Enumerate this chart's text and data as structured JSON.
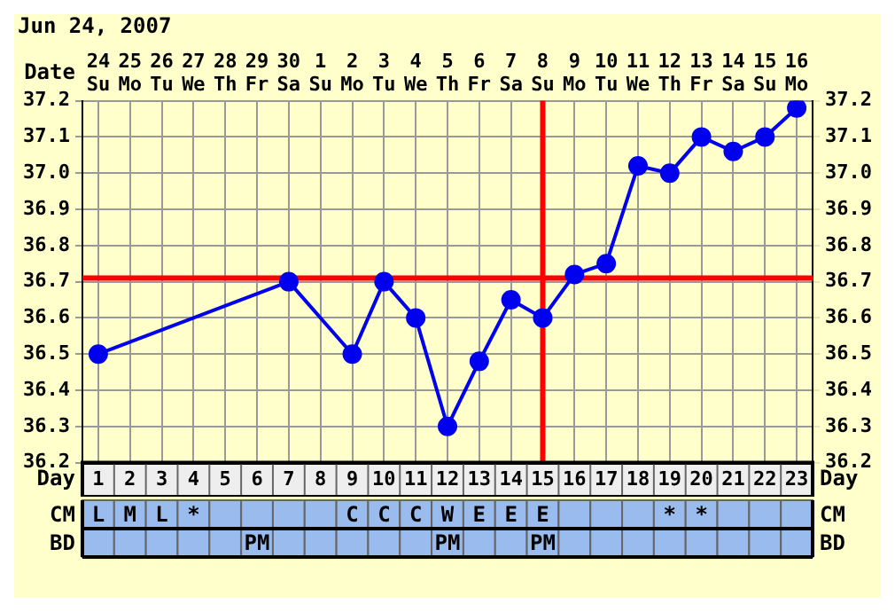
{
  "chart_data": [
    {
      "type": "line",
      "title": "Jun 24, 2007",
      "xlabel": "Day",
      "x2label": "Date",
      "x": [
        1,
        2,
        3,
        4,
        5,
        6,
        7,
        8,
        9,
        10,
        11,
        12,
        13,
        14,
        15,
        16,
        17,
        18,
        19,
        20,
        21,
        22,
        23
      ],
      "series": [
        {
          "color": "#0000ee",
          "values": [
            36.5,
            null,
            null,
            null,
            null,
            null,
            36.7,
            null,
            36.5,
            36.7,
            36.6,
            36.3,
            36.48,
            36.65,
            36.6,
            36.72,
            36.75,
            37.02,
            37.0,
            37.1,
            37.06,
            37.1,
            37.18
          ]
        }
      ],
      "xlim": [
        0.5,
        23.5
      ],
      "xticks": [
        1,
        2,
        3,
        4,
        5,
        6,
        7,
        8,
        9,
        10,
        11,
        12,
        13,
        14,
        15,
        16,
        17,
        18,
        19,
        20,
        21,
        22,
        23
      ],
      "x2lim": [
        "2007-06-23T12:00",
        "2007-07-16T12:00"
      ],
      "x2ticks": [
        {
          "value": "2007-06-24",
          "label": "24 Su"
        },
        {
          "value": "2007-06-25",
          "label": "25 Mo"
        },
        {
          "value": "2007-06-26",
          "label": "26 Tu"
        },
        {
          "value": "2007-06-27",
          "label": "27 We"
        },
        {
          "value": "2007-06-28",
          "label": "28 Th"
        },
        {
          "value": "2007-06-29",
          "label": "29 Fr"
        },
        {
          "value": "2007-06-30",
          "label": "30 Sa"
        },
        {
          "value": "2007-07-01",
          "label": "1 Su"
        },
        {
          "value": "2007-07-02",
          "label": "2 Mo"
        },
        {
          "value": "2007-07-03",
          "label": "3 Tu"
        },
        {
          "value": "2007-07-04",
          "label": "4 We"
        },
        {
          "value": "2007-07-05",
          "label": "5 Th"
        },
        {
          "value": "2007-07-06",
          "label": "6 Fr"
        },
        {
          "value": "2007-07-07",
          "label": "7 Sa"
        },
        {
          "value": "2007-07-08",
          "label": "8 Su"
        },
        {
          "value": "2007-07-09",
          "label": "9 Mo"
        },
        {
          "value": "2007-07-10",
          "label": "10 Tu"
        },
        {
          "value": "2007-07-11",
          "label": "11 We"
        },
        {
          "value": "2007-07-12",
          "label": "12 Th"
        },
        {
          "value": "2007-07-13",
          "label": "13 Fr"
        },
        {
          "value": "2007-07-14",
          "label": "14 Sa"
        },
        {
          "value": "2007-07-15",
          "label": "15 Su"
        },
        {
          "value": "2007-07-16",
          "label": "16 Mo"
        }
      ],
      "ylim": [
        36.2,
        37.2
      ],
      "yticks": [
        36.2,
        36.3,
        36.4,
        36.5,
        36.6,
        36.7,
        36.8,
        36.9,
        {
          "value": 37,
          "label": "37.0"
        },
        37.1,
        37.2
      ],
      "y2lim": [
        36.2,
        37.2
      ],
      "y2ticks": [
        36.2,
        36.3,
        36.4,
        36.5,
        36.6,
        36.7,
        36.8,
        36.9,
        {
          "value": 37,
          "label": "37.0"
        },
        37.1,
        37.2
      ],
      "ref_lines": [
        {
          "axis": "y",
          "value": 36.71,
          "color": "#ff0000"
        },
        {
          "axis": "x",
          "value": 15,
          "color": "#ff0000"
        }
      ],
      "grid": true,
      "marker": "circle",
      "legend": false
    },
    {
      "type": "heatmap",
      "categories": [
        null,
        null,
        null,
        null,
        null,
        null,
        null,
        null,
        null,
        null,
        null,
        null,
        null,
        null,
        null,
        null,
        null,
        null,
        null,
        null,
        null,
        null,
        null
      ],
      "y_categories": [
        "CM",
        "BD"
      ],
      "y2_categories": [
        "CM",
        "BD"
      ],
      "cells": [
        [
          null,
          null,
          null,
          null,
          null,
          null,
          null,
          null,
          null,
          null,
          null,
          null,
          null,
          null,
          null,
          null,
          null,
          null,
          null,
          null,
          null,
          null,
          null
        ],
        [
          null,
          null,
          null,
          null,
          null,
          null,
          null,
          null,
          null,
          null,
          null,
          null,
          null,
          null,
          null,
          null,
          null,
          null,
          null,
          null,
          null,
          null,
          null
        ]
      ],
      "cell_labels": [
        [
          "L",
          "M",
          "L",
          "*",
          null,
          null,
          null,
          null,
          "C",
          "C",
          "C",
          "W",
          "E",
          "E",
          "E",
          null,
          null,
          null,
          "*",
          "*",
          null,
          null,
          null
        ],
        [
          null,
          null,
          null,
          null,
          null,
          "PM",
          null,
          null,
          null,
          null,
          null,
          "PM",
          null,
          null,
          "PM",
          null,
          null,
          null,
          null,
          null,
          null,
          null,
          null
        ]
      ]
    }
  ]
}
